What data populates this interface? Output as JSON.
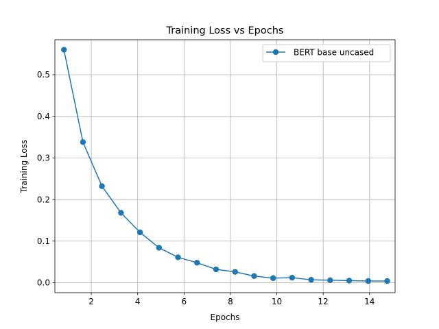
{
  "chart_data": {
    "type": "line",
    "title": "Training Loss vs Epochs",
    "xlabel": "Epochs",
    "ylabel": "Training Loss",
    "xlim": [
      0.43,
      15.1
    ],
    "ylim": [
      -0.024,
      0.584
    ],
    "xticks": [
      2,
      4,
      6,
      8,
      10,
      12,
      14
    ],
    "xtick_labels": [
      "2",
      "4",
      "6",
      "8",
      "10",
      "12",
      "14"
    ],
    "yticks": [
      0.0,
      0.1,
      0.2,
      0.3,
      0.4,
      0.5
    ],
    "ytick_labels": [
      "0.0",
      "0.1",
      "0.2",
      "0.3",
      "0.4",
      "0.5"
    ],
    "grid": true,
    "legend_position": "upper right",
    "series": [
      {
        "name": "BERT base uncased",
        "color": "#1f77b4",
        "marker": "circle",
        "x": [
          0.82,
          1.64,
          2.46,
          3.28,
          4.1,
          4.92,
          5.74,
          6.56,
          7.38,
          8.2,
          9.02,
          9.84,
          10.66,
          11.48,
          12.3,
          13.12,
          13.94,
          14.76
        ],
        "values": [
          0.56,
          0.338,
          0.232,
          0.168,
          0.121,
          0.084,
          0.061,
          0.048,
          0.032,
          0.026,
          0.016,
          0.011,
          0.012,
          0.007,
          0.006,
          0.005,
          0.004,
          0.004
        ]
      }
    ]
  }
}
